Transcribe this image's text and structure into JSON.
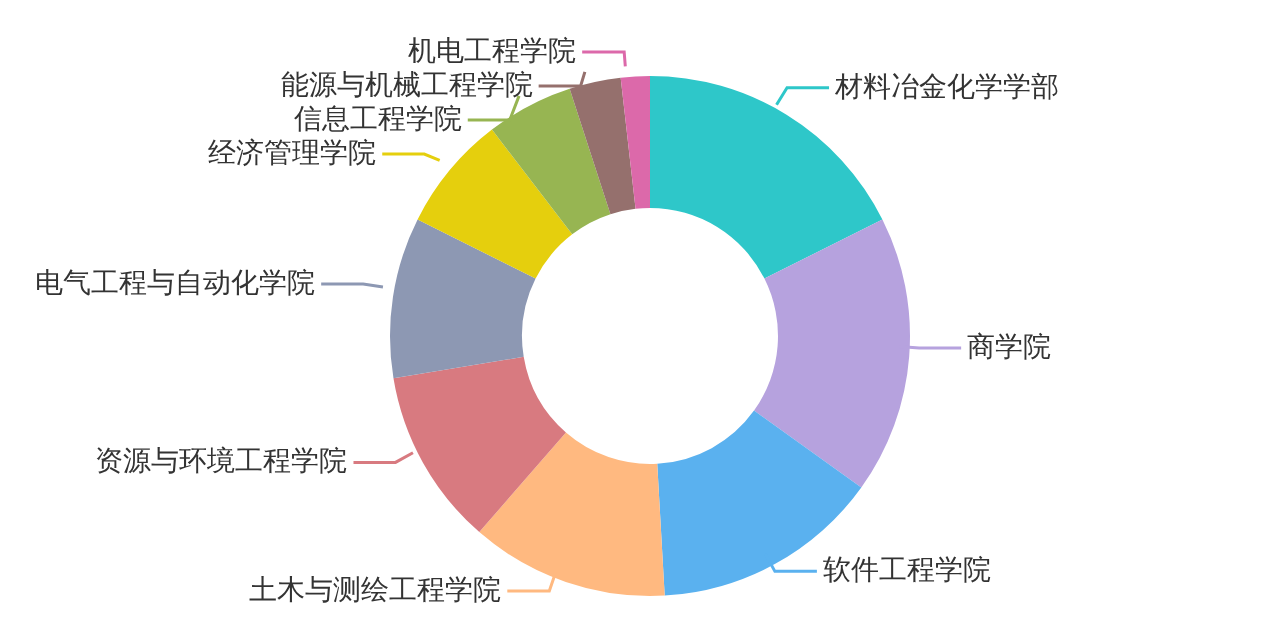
{
  "chart_data": {
    "type": "donut",
    "categories": [
      "材料冶金化学学部",
      "商学院",
      "软件工程学院",
      "土木与测绘工程学院",
      "资源与环境工程学院",
      "电气工程与自动化学院",
      "经济管理学院",
      "信息工程学院",
      "能源与机械工程学院",
      "机电工程学院"
    ],
    "values": [
      17.6,
      17.3,
      14.2,
      12.3,
      11,
      10,
      7.2,
      5.4,
      3.2,
      1.8
    ],
    "colors": [
      "#2ec7c9",
      "#b6a2de",
      "#5ab1ef",
      "#ffb980",
      "#d87a80",
      "#8d98b3",
      "#e5cf0d",
      "#97b552",
      "#95706d",
      "#dc69aa"
    ]
  }
}
